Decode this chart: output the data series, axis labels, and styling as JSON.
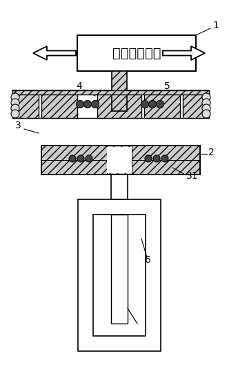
{
  "bg_color": "#ffffff",
  "line_color": "#000000",
  "hatch_color": "#555555",
  "box_label": "换挡驱动装置",
  "label_1": "1",
  "label_2": "2",
  "label_3": "3",
  "label_4": "4",
  "label_5": "5",
  "label_6": "6",
  "label_31": "31",
  "font_size_box": 14,
  "font_size_label": 10
}
